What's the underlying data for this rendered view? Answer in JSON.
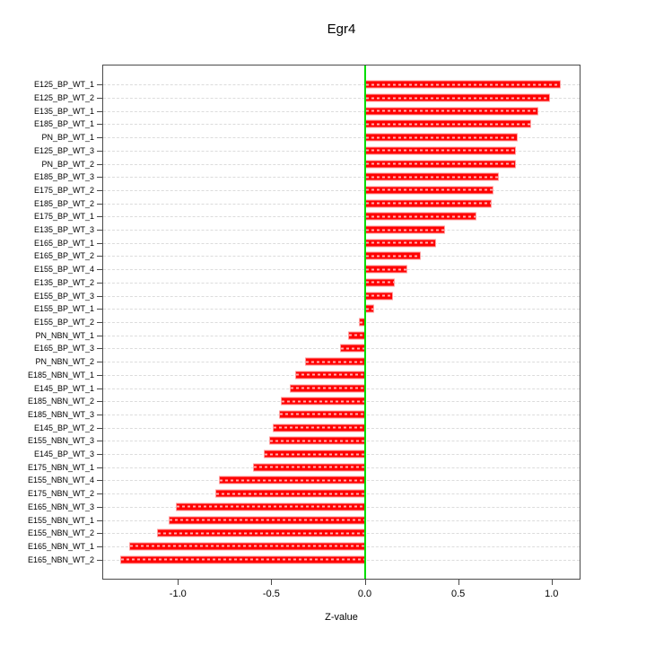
{
  "title": "Egr4",
  "chart_data": {
    "type": "bar",
    "orientation": "horizontal",
    "title": "Egr4",
    "xlabel": "Z-value",
    "ylabel": "",
    "xlim": [
      -1.4,
      1.15
    ],
    "xticks": [
      -1.0,
      -0.5,
      0.0,
      0.5,
      1.0
    ],
    "xtick_labels": [
      "-1.0",
      "-0.5",
      "0.0",
      "0.5",
      "1.0"
    ],
    "grid": "horizontal dashed gridline per category",
    "legend": "none",
    "zero_line_value": 0.0,
    "categories": [
      "E125_BP_WT_1",
      "E125_BP_WT_2",
      "E135_BP_WT_1",
      "E185_BP_WT_1",
      "PN_BP_WT_1",
      "E125_BP_WT_3",
      "PN_BP_WT_2",
      "E185_BP_WT_3",
      "E175_BP_WT_2",
      "E185_BP_WT_2",
      "E175_BP_WT_1",
      "E135_BP_WT_3",
      "E165_BP_WT_1",
      "E165_BP_WT_2",
      "E155_BP_WT_4",
      "E135_BP_WT_2",
      "E155_BP_WT_3",
      "E155_BP_WT_1",
      "E155_BP_WT_2",
      "PN_NBN_WT_1",
      "E165_BP_WT_3",
      "PN_NBN_WT_2",
      "E185_NBN_WT_1",
      "E145_BP_WT_1",
      "E185_NBN_WT_2",
      "E185_NBN_WT_3",
      "E145_BP_WT_2",
      "E155_NBN_WT_3",
      "E145_BP_WT_3",
      "E175_NBN_WT_1",
      "E155_NBN_WT_4",
      "E175_NBN_WT_2",
      "E165_NBN_WT_3",
      "E155_NBN_WT_1",
      "E155_NBN_WT_2",
      "E165_NBN_WT_1",
      "E165_NBN_WT_2"
    ],
    "values": [
      1.05,
      0.99,
      0.93,
      0.89,
      0.82,
      0.81,
      0.81,
      0.72,
      0.69,
      0.68,
      0.6,
      0.43,
      0.38,
      0.3,
      0.23,
      0.16,
      0.15,
      0.05,
      -0.03,
      -0.09,
      -0.13,
      -0.32,
      -0.37,
      -0.4,
      -0.45,
      -0.46,
      -0.49,
      -0.51,
      -0.54,
      -0.6,
      -0.78,
      -0.8,
      -1.01,
      -1.05,
      -1.11,
      -1.26,
      -1.31
    ],
    "colors": {
      "bar_fill": "#ff0000",
      "bar_edge": "#ff9e9e",
      "zero_line": "#00dd00",
      "gridline": "#dcdcdc",
      "axis": "#4a4a4a",
      "background": "#ffffff",
      "text": "#000000"
    }
  }
}
